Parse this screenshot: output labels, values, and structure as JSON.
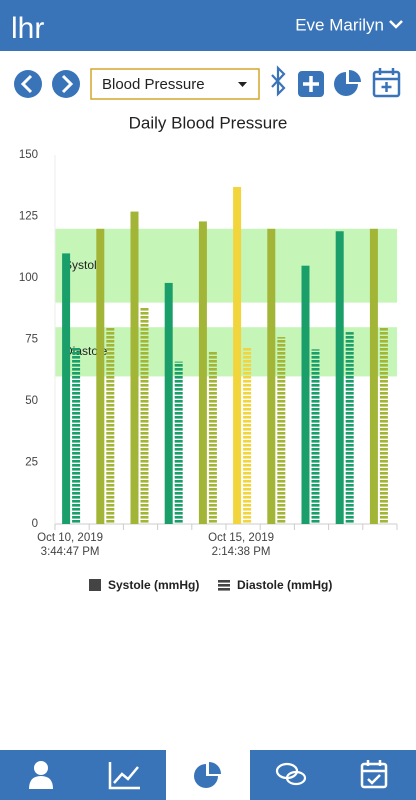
{
  "header": {
    "logo": "lhr",
    "user": "Eve Marilyn"
  },
  "toolbar": {
    "selector": "Blood Pressure"
  },
  "chart_data": {
    "type": "bar",
    "title": "Daily Blood Pressure",
    "categories": [
      "Oct 10, 2019\n3:44:47 PM",
      null,
      null,
      null,
      null,
      "Oct 15, 2019\n2:14:38 PM",
      null,
      null,
      null,
      null
    ],
    "series": [
      {
        "name": "Systole (mmHg)",
        "color": "#444444",
        "values": [
          110,
          120,
          127,
          98,
          123,
          137,
          120,
          105,
          119,
          120
        ],
        "colors": [
          "#1a9e6a",
          "#a3b536",
          "#a3b536",
          "#1a9e6a",
          "#a3b536",
          "#f2d53c",
          "#a3b536",
          "#1a9e6a",
          "#1a9e6a",
          "#a3b536"
        ]
      },
      {
        "name": "Diastole (mmHg)",
        "color": "#444444",
        "values": [
          72,
          80,
          88,
          66,
          70,
          72,
          76,
          71,
          78,
          80
        ],
        "colors": [
          "#1a9e6a",
          "#a3b536",
          "#a3b536",
          "#1a9e6a",
          "#a3b536",
          "#f2d53c",
          "#a3b536",
          "#1a9e6a",
          "#1a9e6a",
          "#a3b536"
        ]
      }
    ],
    "bands": [
      {
        "label": "Systole",
        "from": 90,
        "to": 120,
        "color": "#c6f5b8"
      },
      {
        "label": "Diastole",
        "from": 60,
        "to": 80,
        "color": "#c6f5b8"
      }
    ],
    "ylim": [
      0,
      150
    ],
    "yticks": [
      0,
      25,
      50,
      75,
      100,
      125,
      150
    ],
    "grid": false
  }
}
